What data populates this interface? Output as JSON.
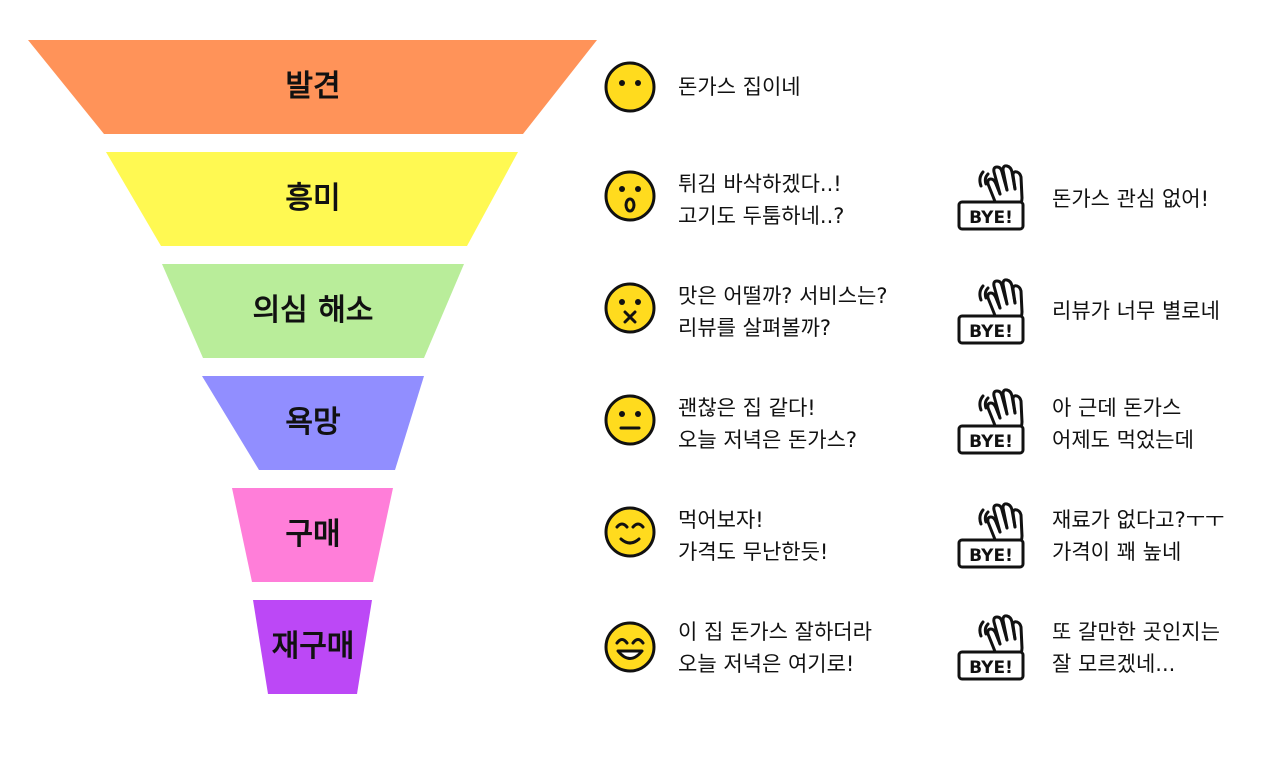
{
  "funnel": {
    "stages": [
      {
        "label": "발견",
        "color": "#FF9359"
      },
      {
        "label": "흥미",
        "color": "#FFF952"
      },
      {
        "label": "의심 해소",
        "color": "#B9ED9A"
      },
      {
        "label": "욕망",
        "color": "#918EFF"
      },
      {
        "label": "구매",
        "color": "#FF7ED9"
      },
      {
        "label": "재구매",
        "color": "#BC48F6"
      }
    ]
  },
  "thoughts": [
    {
      "face": "neutral-face-icon",
      "lines": [
        "돈가스 집이네"
      ]
    },
    {
      "face": "surprised-face-icon",
      "lines": [
        "튀김 바삭하겠다..!",
        "고기도 두툼하네..?"
      ]
    },
    {
      "face": "skeptical-face-icon",
      "lines": [
        "맛은 어떨까? 서비스는?",
        "리뷰를 살펴볼까?"
      ]
    },
    {
      "face": "straight-face-icon",
      "lines": [
        "괜찮은 집 같다!",
        "오늘 저녁은 돈가스?"
      ]
    },
    {
      "face": "content-face-icon",
      "lines": [
        "먹어보자!",
        "가격도 무난한듯!"
      ]
    },
    {
      "face": "happy-face-icon",
      "lines": [
        "이 집 돈가스 잘하더라",
        "오늘 저녁은 여기로!"
      ]
    }
  ],
  "dropouts": [
    {
      "badge": "BYE!",
      "lines": [
        "돈가스 관심 없어!"
      ]
    },
    {
      "badge": "BYE!",
      "lines": [
        "리뷰가 너무 별로네"
      ]
    },
    {
      "badge": "BYE!",
      "lines": [
        "아 근데 돈가스",
        "어제도 먹었는데"
      ]
    },
    {
      "badge": "BYE!",
      "lines": [
        "재료가 없다고?ㅜㅜ",
        "가격이 꽤 높네"
      ]
    },
    {
      "badge": "BYE!",
      "lines": [
        "또 갈만한 곳인지는",
        "잘 모르겠네..."
      ]
    }
  ],
  "colors": {
    "face_fill": "#FFDB1E",
    "outline": "#111111"
  }
}
